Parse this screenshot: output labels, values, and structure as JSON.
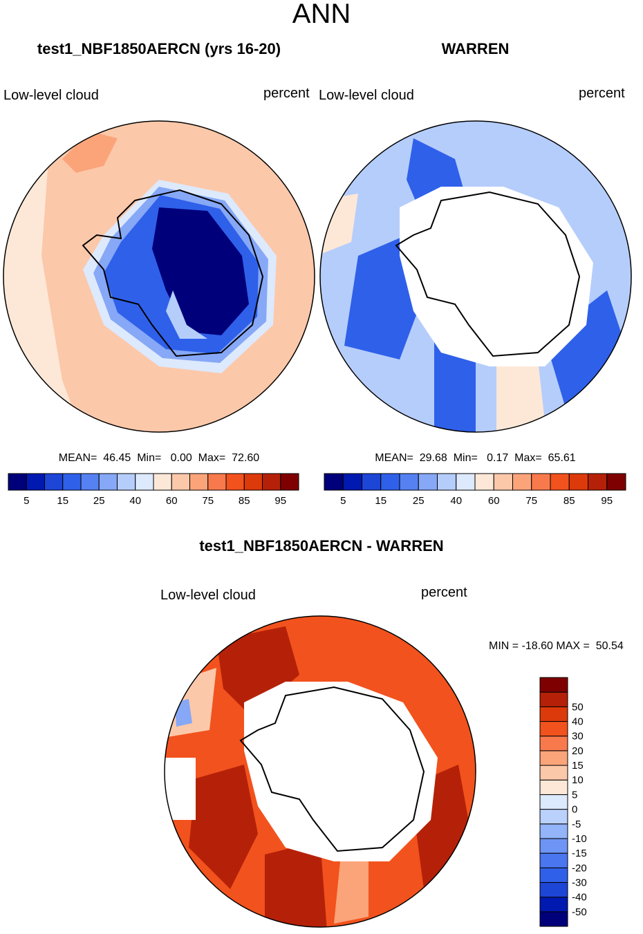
{
  "figure": {
    "title": "ANN"
  },
  "panels": [
    {
      "title": "test1_NBF1850AERCN (yrs 16-20)",
      "left_label": "Low-level cloud",
      "right_label": "percent",
      "stats": {
        "mean": "46.45",
        "min": "0.00",
        "max": "72.60"
      },
      "stats_text": "MEAN=  46.45  Min=   0.00  Max=  72.60"
    },
    {
      "title": "WARREN",
      "left_label": "Low-level cloud",
      "right_label": "percent",
      "stats": {
        "mean": "29.68",
        "min": "0.17",
        "max": "65.61"
      },
      "stats_text": "MEAN=  29.68  Min=   0.17  Max=  65.61"
    }
  ],
  "diff_panel": {
    "title": "test1_NBF1850AERCN - WARREN",
    "left_label": "Low-level cloud",
    "right_label": "percent",
    "min": "-18.60",
    "max": "50.54",
    "minmax_text": "MIN = -18.60 MAX =  50.54"
  },
  "colorbar_main": {
    "colors": [
      "#00007a",
      "#0019b0",
      "#1d45d6",
      "#2f60ea",
      "#5581f2",
      "#86a8f6",
      "#b5cdfb",
      "#dde9fd",
      "#fde8d8",
      "#fcc8aa",
      "#fba47a",
      "#f87a4c",
      "#f2521d",
      "#dc3a0a",
      "#b52108",
      "#7f0000"
    ],
    "tick_labels": [
      "5",
      "15",
      "25",
      "40",
      "60",
      "75",
      "85",
      "95"
    ]
  },
  "colorbar_diff": {
    "colors": [
      "#00007a",
      "#0019b0",
      "#1d45d6",
      "#2f60ea",
      "#4a76f0",
      "#6e95f5",
      "#93b4f8",
      "#bad1fc",
      "#dde9fd",
      "#fde8d8",
      "#fcc8aa",
      "#fba47a",
      "#f87a4c",
      "#f2521d",
      "#dc3a0a",
      "#b52108",
      "#7f0000"
    ],
    "tick_labels": [
      "-50",
      "-40",
      "-30",
      "-20",
      "-15",
      "-10",
      "-5",
      "0",
      "5",
      "10",
      "15",
      "20",
      "30",
      "40",
      "50"
    ]
  },
  "map_colors": {
    "ocean_mid": "#fcc8aa",
    "ocean_light": "#fde8d8",
    "ocean_warm": "#fba47a",
    "ice_dark": "#00007a",
    "blue_mid": "#2f60ea",
    "blue_light": "#b5cdfb",
    "red_main": "#f2521d",
    "red_dark": "#dc3a0a",
    "red_deep": "#b52108"
  }
}
